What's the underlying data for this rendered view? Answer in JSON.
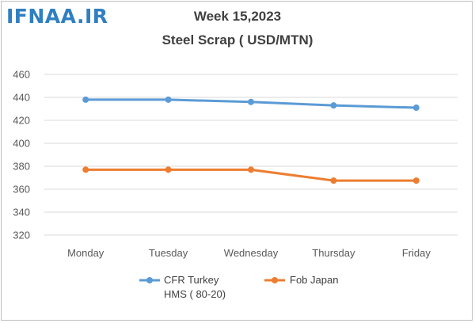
{
  "logo_text": "IFNAA.IR",
  "chart_data": {
    "type": "line",
    "title_line1": "Week 15,2023",
    "title_line2": "Steel Scrap ( USD/MTN)",
    "categories": [
      "Monday",
      "Tuesday",
      "Wednesday",
      "Thursday",
      "Friday"
    ],
    "ylim": [
      320,
      460
    ],
    "yticks": [
      320,
      340,
      360,
      380,
      400,
      420,
      440,
      460
    ],
    "grid": true,
    "legend_position": "bottom",
    "series": [
      {
        "name_line1": "CFR Turkey",
        "name_line2": "HMS ( 80-20)",
        "color": "#5b9bd5",
        "values": [
          438,
          438,
          436,
          433,
          431
        ]
      },
      {
        "name_line1": "Fob Japan",
        "name_line2": "",
        "color": "#ed7d31",
        "values": [
          377,
          377,
          377,
          367.5,
          367.5
        ]
      }
    ]
  }
}
